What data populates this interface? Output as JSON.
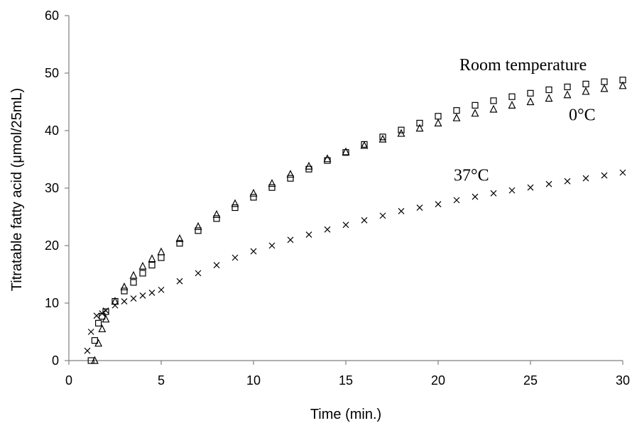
{
  "chart_data": {
    "type": "scatter",
    "title": "",
    "xlabel": "Time (min.)",
    "ylabel": "Titratable fatty acid (μmol/25mL)",
    "xlim": [
      0,
      30
    ],
    "ylim": [
      0,
      60
    ],
    "xticks": [
      "0",
      "5",
      "10",
      "15",
      "20",
      "25",
      "30"
    ],
    "yticks": [
      "0",
      "10",
      "20",
      "30",
      "40",
      "50",
      "60"
    ],
    "grid": false,
    "legend": "none",
    "colors": {
      "axis": "#808080",
      "marker": "#000000"
    },
    "series": [
      {
        "name": "Room temperature",
        "marker": "square",
        "x": [
          1.2,
          1.4,
          1.6,
          1.8,
          2,
          2.5,
          3,
          3.5,
          4,
          4.5,
          5,
          6,
          7,
          8,
          9,
          10,
          11,
          12,
          13,
          14,
          15,
          16,
          17,
          18,
          19,
          20,
          21,
          22,
          23,
          24,
          25,
          26,
          27,
          28,
          29,
          30
        ],
        "y": [
          0,
          3.5,
          6.5,
          7.7,
          8.5,
          10.3,
          12.1,
          13.6,
          15.2,
          16.6,
          17.9,
          20.4,
          22.6,
          24.7,
          26.6,
          28.4,
          30.1,
          31.7,
          33.3,
          34.8,
          36.2,
          37.6,
          38.9,
          40.1,
          41.3,
          42.5,
          43.5,
          44.4,
          45.2,
          45.9,
          46.5,
          47.1,
          47.6,
          48.1,
          48.5,
          48.8
        ]
      },
      {
        "name": "0°C",
        "marker": "triangle",
        "x": [
          1.4,
          1.6,
          1.8,
          2,
          2.5,
          3,
          3.5,
          4,
          4.5,
          5,
          6,
          7,
          8,
          9,
          10,
          11,
          12,
          13,
          14,
          15,
          16,
          17,
          18,
          19,
          20,
          21,
          22,
          23,
          24,
          25,
          26,
          27,
          28,
          29,
          30
        ],
        "y": [
          0,
          3,
          5.5,
          7.2,
          10.3,
          12.8,
          14.8,
          16.4,
          17.7,
          18.9,
          21.2,
          23.3,
          25.4,
          27.3,
          29.1,
          30.8,
          32.4,
          33.8,
          35.1,
          36.3,
          37.4,
          38.5,
          39.5,
          40.4,
          41.3,
          42.2,
          43,
          43.7,
          44.4,
          45,
          45.6,
          46.2,
          46.8,
          47.3,
          47.8
        ]
      },
      {
        "name": "37°C",
        "marker": "cross",
        "x": [
          1,
          1.2,
          1.5,
          1.8,
          2,
          2.5,
          3,
          3.5,
          4,
          4.5,
          5,
          6,
          7,
          8,
          9,
          10,
          11,
          12,
          13,
          14,
          15,
          16,
          17,
          18,
          19,
          20,
          21,
          22,
          23,
          24,
          25,
          26,
          27,
          28,
          29,
          30
        ],
        "y": [
          1.7,
          5,
          7.8,
          8.2,
          8.7,
          9.6,
          10.3,
          10.8,
          11.3,
          11.8,
          12.3,
          13.8,
          15.2,
          16.6,
          17.9,
          19,
          20,
          21,
          21.9,
          22.8,
          23.6,
          24.4,
          25.2,
          26,
          26.6,
          27.2,
          27.9,
          28.5,
          29.1,
          29.6,
          30.1,
          30.7,
          31.2,
          31.7,
          32.2,
          32.7
        ]
      }
    ],
    "annotations": [
      {
        "text": "Room temperature",
        "x": 24.6,
        "y": 50.5
      },
      {
        "text": "0°C",
        "x": 27.8,
        "y": 41.8
      },
      {
        "text": "37°C",
        "x": 21.8,
        "y": 31.3
      }
    ]
  }
}
